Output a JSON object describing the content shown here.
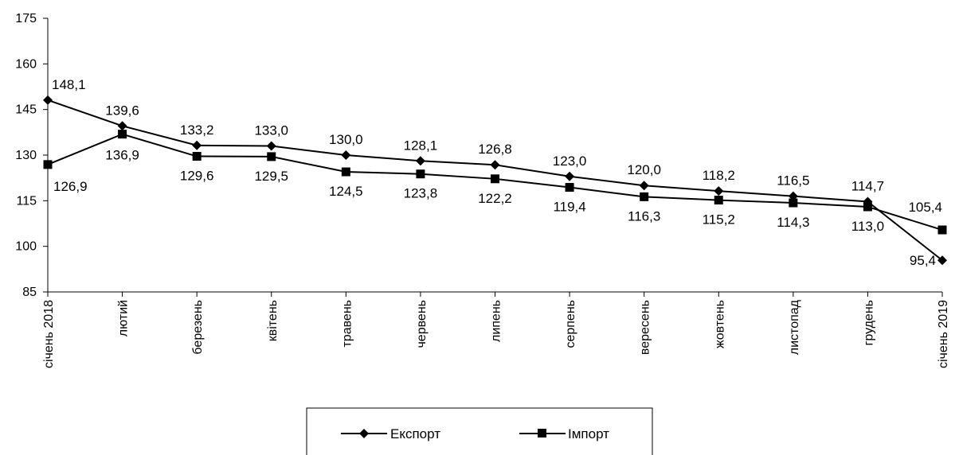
{
  "chart_data": {
    "type": "line",
    "title": "",
    "xlabel": "",
    "ylabel": "",
    "categories": [
      "січень 2018",
      "лютий",
      "березень",
      "квітень",
      "травень",
      "червень",
      "липень",
      "серпень",
      "вересень",
      "жовтень",
      "листопад",
      "грудень",
      "січень 2019"
    ],
    "ylim": [
      85,
      175
    ],
    "yticks": [
      85,
      100,
      115,
      130,
      145,
      160,
      175
    ],
    "grid": false,
    "legend_position": "bottom",
    "series": [
      {
        "name": "Експорт",
        "marker": "diamond",
        "color": "#000000",
        "values": [
          148.1,
          139.6,
          133.2,
          133.0,
          130.0,
          128.1,
          126.8,
          123.0,
          120.0,
          118.2,
          116.5,
          114.7,
          95.4
        ],
        "labels": [
          "148,1",
          "139,6",
          "133,2",
          "133,0",
          "130,0",
          "128,1",
          "126,8",
          "123,0",
          "120,0",
          "118,2",
          "116,5",
          "114,7",
          "95,4"
        ]
      },
      {
        "name": "Імпорт",
        "marker": "square",
        "color": "#000000",
        "values": [
          126.9,
          136.9,
          129.6,
          129.5,
          124.5,
          123.8,
          122.2,
          119.4,
          116.3,
          115.2,
          114.3,
          113.0,
          105.4
        ],
        "labels": [
          "126,9",
          "136,9",
          "129,6",
          "129,5",
          "124,5",
          "123,8",
          "122,2",
          "119,4",
          "116,3",
          "115,2",
          "114,3",
          "113,0",
          "105,4"
        ]
      }
    ]
  }
}
